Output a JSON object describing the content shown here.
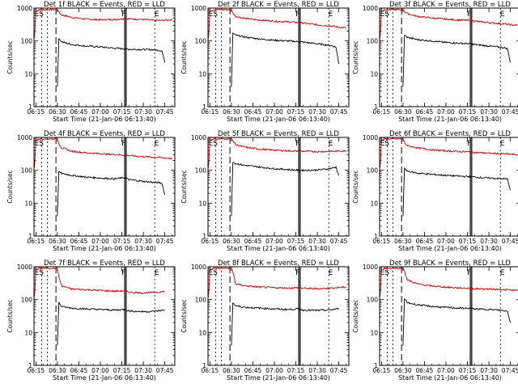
{
  "colors": {
    "background": "#ffffff",
    "axes": "#000000",
    "events": "#000000",
    "lld": "#cc0000"
  },
  "chart_data": [
    {
      "type": "line",
      "title": "Det 1f BLACK = Events, RED = LLD",
      "xlabel": "Start Time (21-Jan-06 06:13:40)",
      "ylabel": "Counts/sec",
      "yscale": "log",
      "ylim": [
        1,
        1000
      ],
      "xlim": [
        "06:13:40",
        "07:52:00"
      ],
      "x_ticks": [
        "06:15",
        "06:30",
        "06:45",
        "07:00",
        "07:15",
        "07:30",
        "07:45"
      ],
      "y_ticks": [
        "1",
        "10",
        "100",
        "1000"
      ],
      "markers": [
        "ES",
        "F",
        "E"
      ],
      "x": [
        "06:14",
        "06:15",
        "06:17",
        "06:20",
        "06:30",
        "06:31",
        "06:33",
        "06:40",
        "06:50",
        "07:00",
        "07:10",
        "07:17",
        "07:20",
        "07:30",
        "07:37",
        "07:41",
        "07:43",
        "07:45",
        "07:50"
      ],
      "series": [
        {
          "name": "LLD",
          "values": [
            120,
            800,
            900,
            900,
            900,
            750,
            620,
            520,
            460,
            440,
            450,
            480,
            470,
            450,
            420,
            420,
            420,
            430,
            440
          ]
        },
        {
          "name": "Events",
          "values": [
            null,
            null,
            null,
            null,
            4,
            120,
            95,
            78,
            70,
            66,
            60,
            58,
            56,
            55,
            54,
            52,
            50,
            22,
            null
          ]
        }
      ]
    },
    {
      "type": "line",
      "title": "Det 2f BLACK = Events, RED = LLD",
      "xlabel": "Start Time (21-Jan-06 06:13:40)",
      "ylabel": "Counts/sec",
      "yscale": "log",
      "ylim": [
        1,
        1000
      ],
      "xlim": [
        "06:13:40",
        "07:52:00"
      ],
      "x_ticks": [
        "06:15",
        "06:30",
        "06:45",
        "07:00",
        "07:15",
        "07:30",
        "07:45"
      ],
      "y_ticks": [
        "1",
        "10",
        "100",
        "1000"
      ],
      "markers": [
        "ES",
        "F",
        "E"
      ],
      "x": [
        "06:14",
        "06:15",
        "06:17",
        "06:20",
        "06:30",
        "06:31",
        "06:33",
        "06:40",
        "06:50",
        "07:00",
        "07:10",
        "07:17",
        "07:20",
        "07:30",
        "07:37",
        "07:41",
        "07:43",
        "07:45",
        "07:50"
      ],
      "series": [
        {
          "name": "LLD",
          "values": [
            120,
            800,
            900,
            900,
            900,
            700,
            560,
            480,
            430,
            400,
            380,
            360,
            350,
            310,
            290,
            280,
            270,
            260,
            250
          ]
        },
        {
          "name": "Events",
          "values": [
            null,
            null,
            null,
            null,
            4,
            170,
            150,
            130,
            115,
            105,
            100,
            95,
            92,
            82,
            75,
            70,
            65,
            20,
            null
          ]
        }
      ]
    },
    {
      "type": "line",
      "title": "Det 3f BLACK = Events, RED = LLD",
      "xlabel": "Start Time (21-Jan-06 06:13:40)",
      "ylabel": "Counts/sec",
      "yscale": "log",
      "ylim": [
        1,
        1000
      ],
      "xlim": [
        "06:13:40",
        "07:52:00"
      ],
      "x_ticks": [
        "06:15",
        "06:30",
        "06:45",
        "07:00",
        "07:15",
        "07:30",
        "07:45"
      ],
      "y_ticks": [
        "1",
        "10",
        "100",
        "1000"
      ],
      "markers": [
        "ES",
        "F",
        "E"
      ],
      "x": [
        "06:14",
        "06:15",
        "06:17",
        "06:20",
        "06:30",
        "06:31",
        "06:33",
        "06:40",
        "06:50",
        "07:00",
        "07:10",
        "07:17",
        "07:20",
        "07:30",
        "07:37",
        "07:41",
        "07:43",
        "07:45",
        "07:50"
      ],
      "series": [
        {
          "name": "LLD",
          "values": [
            120,
            800,
            900,
            900,
            900,
            800,
            680,
            560,
            500,
            460,
            430,
            420,
            400,
            360,
            340,
            330,
            320,
            310,
            300
          ]
        },
        {
          "name": "Events",
          "values": [
            null,
            null,
            null,
            null,
            4,
            150,
            130,
            110,
            100,
            90,
            85,
            82,
            78,
            70,
            65,
            62,
            58,
            22,
            null
          ]
        }
      ]
    },
    {
      "type": "line",
      "title": "Det 4f BLACK = Events, RED = LLD",
      "xlabel": "Start Time (21-Jan-06 06:13:40)",
      "ylabel": "Counts/sec",
      "yscale": "log",
      "ylim": [
        1,
        1000
      ],
      "xlim": [
        "06:13:40",
        "07:52:00"
      ],
      "x_ticks": [
        "06:15",
        "06:30",
        "06:45",
        "07:00",
        "07:15",
        "07:30",
        "07:45"
      ],
      "y_ticks": [
        "1",
        "10",
        "100",
        "1000"
      ],
      "markers": [
        "ES",
        "F",
        "E"
      ],
      "x": [
        "06:14",
        "06:15",
        "06:17",
        "06:20",
        "06:30",
        "06:31",
        "06:33",
        "06:40",
        "06:50",
        "07:00",
        "07:10",
        "07:17",
        "07:20",
        "07:30",
        "07:37",
        "07:41",
        "07:43",
        "07:45",
        "07:50"
      ],
      "series": [
        {
          "name": "LLD",
          "values": [
            120,
            800,
            900,
            900,
            900,
            650,
            480,
            380,
            340,
            320,
            300,
            290,
            280,
            260,
            250,
            245,
            240,
            235,
            230
          ]
        },
        {
          "name": "Events",
          "values": [
            null,
            null,
            null,
            null,
            4,
            90,
            80,
            70,
            62,
            58,
            55,
            60,
            52,
            46,
            43,
            42,
            40,
            18,
            null
          ]
        }
      ]
    },
    {
      "type": "line",
      "title": "Det 5f BLACK = Events, RED = LLD",
      "xlabel": "Start Time (21-Jan-06 06:13:40)",
      "ylabel": "Counts/sec",
      "yscale": "log",
      "ylim": [
        1,
        1000
      ],
      "xlim": [
        "06:13:40",
        "07:52:00"
      ],
      "x_ticks": [
        "06:15",
        "06:30",
        "06:45",
        "07:00",
        "07:15",
        "07:30",
        "07:45"
      ],
      "y_ticks": [
        "1",
        "10",
        "100",
        "1000"
      ],
      "markers": [
        "ES",
        "F",
        "E"
      ],
      "x": [
        "06:14",
        "06:15",
        "06:17",
        "06:20",
        "06:30",
        "06:31",
        "06:33",
        "06:40",
        "06:50",
        "07:00",
        "07:10",
        "07:17",
        "07:20",
        "07:30",
        "07:37",
        "07:41",
        "07:43",
        "07:45",
        "07:50"
      ],
      "series": [
        {
          "name": "LLD",
          "values": [
            120,
            800,
            900,
            900,
            900,
            800,
            600,
            500,
            440,
            410,
            390,
            380,
            380,
            370,
            375,
            380,
            380,
            385,
            390
          ]
        },
        {
          "name": "Events",
          "values": [
            null,
            null,
            null,
            null,
            4,
            180,
            160,
            140,
            125,
            112,
            105,
            100,
            100,
            102,
            110,
            118,
            125,
            70,
            null
          ]
        }
      ]
    },
    {
      "type": "line",
      "title": "Det 6f BLACK = Events, RED = LLD",
      "xlabel": "Start Time (21-Jan-06 06:13:40)",
      "ylabel": "Counts/sec",
      "yscale": "log",
      "ylim": [
        1,
        1000
      ],
      "xlim": [
        "06:13:40",
        "07:52:00"
      ],
      "x_ticks": [
        "06:15",
        "06:30",
        "06:45",
        "07:00",
        "07:15",
        "07:30",
        "07:45"
      ],
      "y_ticks": [
        "1",
        "10",
        "100",
        "1000"
      ],
      "markers": [
        "ES",
        "F",
        "E"
      ],
      "x": [
        "06:14",
        "06:15",
        "06:17",
        "06:20",
        "06:30",
        "06:31",
        "06:33",
        "06:40",
        "06:50",
        "07:00",
        "07:10",
        "07:17",
        "07:20",
        "07:30",
        "07:37",
        "07:41",
        "07:43",
        "07:45",
        "07:50"
      ],
      "series": [
        {
          "name": "LLD",
          "values": [
            120,
            800,
            900,
            900,
            900,
            700,
            560,
            480,
            420,
            390,
            370,
            360,
            350,
            330,
            320,
            315,
            310,
            305,
            300
          ]
        },
        {
          "name": "Events",
          "values": [
            null,
            null,
            null,
            null,
            4,
            110,
            95,
            82,
            75,
            70,
            66,
            64,
            62,
            58,
            56,
            55,
            54,
            25,
            null
          ]
        }
      ]
    },
    {
      "type": "line",
      "title": "Det 7f BLACK = Events, RED = LLD",
      "xlabel": "Start Time (21-Jan-06 06:13:40)",
      "ylabel": "Counts/sec",
      "yscale": "log",
      "ylim": [
        1,
        1000
      ],
      "xlim": [
        "06:13:40",
        "07:52:00"
      ],
      "x_ticks": [
        "06:15",
        "06:30",
        "06:45",
        "07:00",
        "07:15",
        "07:30",
        "07:45"
      ],
      "y_ticks": [
        "1",
        "10",
        "100",
        "1000"
      ],
      "markers": [
        "ES",
        "F",
        "E"
      ],
      "x": [
        "06:14",
        "06:15",
        "06:17",
        "06:20",
        "06:30",
        "06:31",
        "06:33",
        "06:40",
        "06:50",
        "07:00",
        "07:10",
        "07:17",
        "07:20",
        "07:30",
        "07:37",
        "07:41",
        "07:43",
        "07:45",
        "07:50"
      ],
      "series": [
        {
          "name": "LLD",
          "values": [
            120,
            800,
            900,
            900,
            900,
            500,
            260,
            210,
            200,
            190,
            180,
            185,
            170,
            160,
            165,
            170,
            175,
            180,
            null
          ]
        },
        {
          "name": "Events",
          "values": [
            null,
            null,
            null,
            null,
            4,
            80,
            62,
            55,
            52,
            50,
            48,
            50,
            45,
            43,
            44,
            46,
            47,
            48,
            null
          ]
        }
      ]
    },
    {
      "type": "line",
      "title": "Det 8f BLACK = Events, RED = LLD",
      "xlabel": "Start Time (21-Jan-06 06:13:40)",
      "ylabel": "Counts/sec",
      "yscale": "log",
      "ylim": [
        1,
        1000
      ],
      "xlim": [
        "06:13:40",
        "07:52:00"
      ],
      "x_ticks": [
        "06:15",
        "06:30",
        "06:45",
        "07:00",
        "07:15",
        "07:30",
        "07:45"
      ],
      "y_ticks": [
        "1",
        "10",
        "100",
        "1000"
      ],
      "markers": [
        "ES",
        "F",
        "E"
      ],
      "x": [
        "06:14",
        "06:15",
        "06:17",
        "06:20",
        "06:30",
        "06:31",
        "06:33",
        "06:40",
        "06:50",
        "07:00",
        "07:10",
        "07:17",
        "07:20",
        "07:30",
        "07:37",
        "07:41",
        "07:43",
        "07:45",
        "07:50"
      ],
      "series": [
        {
          "name": "LLD",
          "values": [
            120,
            800,
            900,
            900,
            900,
            700,
            300,
            260,
            240,
            230,
            225,
            230,
            220,
            215,
            220,
            225,
            230,
            235,
            240
          ]
        },
        {
          "name": "Events",
          "values": [
            null,
            null,
            null,
            null,
            4,
            80,
            65,
            58,
            55,
            52,
            50,
            52,
            48,
            47,
            48,
            50,
            52,
            54,
            null
          ]
        }
      ]
    },
    {
      "type": "line",
      "title": "Det 9f BLACK = Events, RED = LLD",
      "xlabel": "Start Time (21-Jan-06 06:13:40)",
      "ylabel": "Counts/sec",
      "yscale": "log",
      "ylim": [
        1,
        1000
      ],
      "xlim": [
        "06:13:40",
        "07:52:00"
      ],
      "x_ticks": [
        "06:15",
        "06:30",
        "06:45",
        "07:00",
        "07:15",
        "07:30",
        "07:45"
      ],
      "y_ticks": [
        "1",
        "10",
        "100",
        "1000"
      ],
      "markers": [
        "ES",
        "F",
        "E"
      ],
      "x": [
        "06:14",
        "06:15",
        "06:17",
        "06:20",
        "06:30",
        "06:31",
        "06:33",
        "06:40",
        "06:50",
        "07:00",
        "07:10",
        "07:17",
        "07:20",
        "07:30",
        "07:37",
        "07:41",
        "07:43",
        "07:45",
        "07:50"
      ],
      "series": [
        {
          "name": "LLD",
          "values": [
            120,
            800,
            900,
            900,
            900,
            750,
            400,
            300,
            260,
            240,
            225,
            220,
            215,
            210,
            205,
            200,
            200,
            195,
            190
          ]
        },
        {
          "name": "Events",
          "values": [
            null,
            null,
            null,
            null,
            4,
            110,
            80,
            70,
            62,
            58,
            55,
            54,
            52,
            50,
            48,
            46,
            44,
            20,
            null
          ]
        }
      ]
    }
  ]
}
